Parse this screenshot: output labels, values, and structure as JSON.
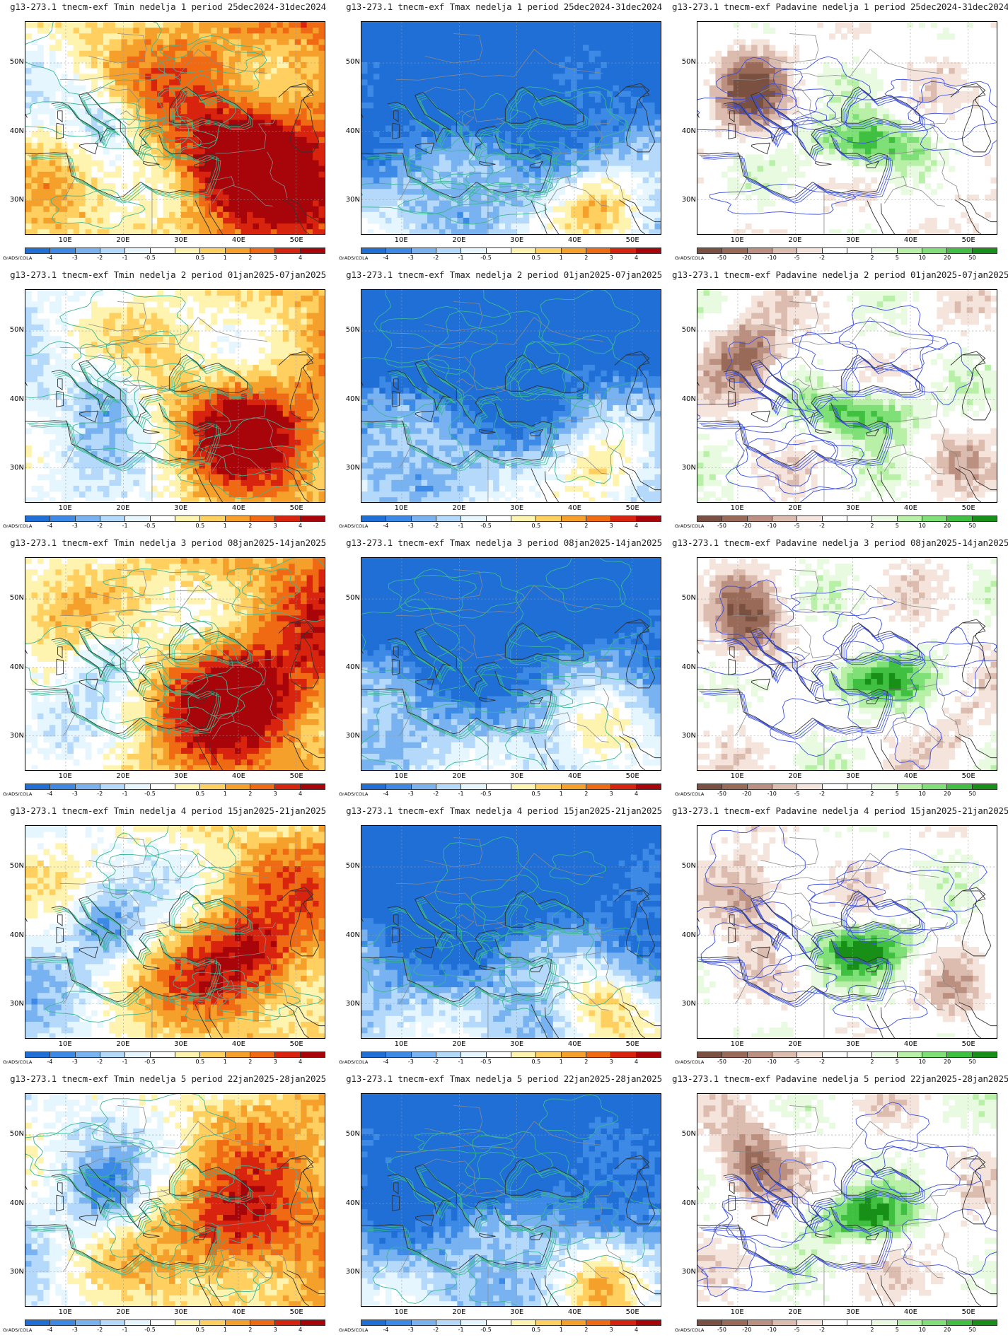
{
  "lat_labels": [
    "50N",
    "40N",
    "30N"
  ],
  "lon_labels": [
    "10E",
    "20E",
    "30E",
    "40E",
    "50E"
  ],
  "footer_brand": "GrADS/COLA",
  "colors": {
    "tmin_palette": [
      "#1f6fd6",
      "#3d8ae6",
      "#78b2f0",
      "#b4d9fa",
      "#e6f6ff",
      "#ffffff",
      "#fff3b0",
      "#ffd060",
      "#f5a02a",
      "#f06a14",
      "#d8240e",
      "#a8050a"
    ],
    "tmax_palette": [
      "#1f6fd6",
      "#3d8ae6",
      "#78b2f0",
      "#b4d9fa",
      "#e6f6ff",
      "#ffffff",
      "#fff3b0",
      "#ffd060",
      "#f5a02a",
      "#f06a14",
      "#d8240e",
      "#a8050a"
    ],
    "precip_palette": [
      "#7a5040",
      "#9a6a58",
      "#bc9080",
      "#ddbcb0",
      "#f4e4dc",
      "#ffffff",
      "#ffffff",
      "#e8fae0",
      "#b8f0a8",
      "#80e078",
      "#40c040",
      "#189018"
    ],
    "temp_contour": "#3ab890",
    "precip_contour": "#3a4ee0",
    "border": "#8a8a8a",
    "coast": "#333333"
  },
  "legends": {
    "temperature": [
      "-4",
      "-3",
      "-2",
      "-1",
      "-0.5",
      "0.5",
      "1",
      "2",
      "3",
      "4"
    ],
    "precipitation": [
      "-50",
      "-20",
      "-10",
      "-5",
      "-2",
      "2",
      "5",
      "10",
      "20",
      "50"
    ]
  },
  "panels": [
    {
      "title": "g13-273.1 tnecm-exf Tmin nedelja 1 period 25dec2024-31dec2024",
      "variable": "Tmin"
    },
    {
      "title": "g13-273.1 tnecm-exf Tmax nedelja 1 period 25dec2024-31dec2024",
      "variable": "Tmax"
    },
    {
      "title": "g13-273.1 tnecm-exf Padavine nedelja 1 period 25dec2024-31dec2024",
      "variable": "Padavine"
    },
    {
      "title": "g13-273.1 tnecm-exf Tmin nedelja 2 period 01jan2025-07jan2025",
      "variable": "Tmin"
    },
    {
      "title": "g13-273.1 tnecm-exf Tmax nedelja 2 period 01jan2025-07jan2025",
      "variable": "Tmax"
    },
    {
      "title": "g13-273.1 tnecm-exf Padavine nedelja 2 period 01jan2025-07jan2025",
      "variable": "Padavine"
    },
    {
      "title": "g13-273.1 tnecm-exf Tmin nedelja 3 period 08jan2025-14jan2025",
      "variable": "Tmin"
    },
    {
      "title": "g13-273.1 tnecm-exf Tmax nedelja 3 period 08jan2025-14jan2025",
      "variable": "Tmax"
    },
    {
      "title": "g13-273.1 tnecm-exf Padavine nedelja 3 period 08jan2025-14jan2025",
      "variable": "Padavine"
    },
    {
      "title": "g13-273.1 tnecm-exf Tmin nedelja 4 period 15jan2025-21jan2025",
      "variable": "Tmin"
    },
    {
      "title": "g13-273.1 tnecm-exf Tmax nedelja 4 period 15jan2025-21jan2025",
      "variable": "Tmax"
    },
    {
      "title": "g13-273.1 tnecm-exf Padavine nedelja 4 period 15jan2025-21jan2025",
      "variable": "Padavine"
    },
    {
      "title": "g13-273.1 tnecm-exf Tmin nedelja 5 period 22jan2025-28jan2025",
      "variable": "Tmin"
    },
    {
      "title": "g13-273.1 tnecm-exf Tmax nedelja 5 period 22jan2025-28jan2025",
      "variable": "Tmax"
    },
    {
      "title": "g13-273.1 tnecm-exf Padavine nedelja 5 period 22jan2025-28jan2025",
      "variable": "Padavine"
    }
  ]
}
